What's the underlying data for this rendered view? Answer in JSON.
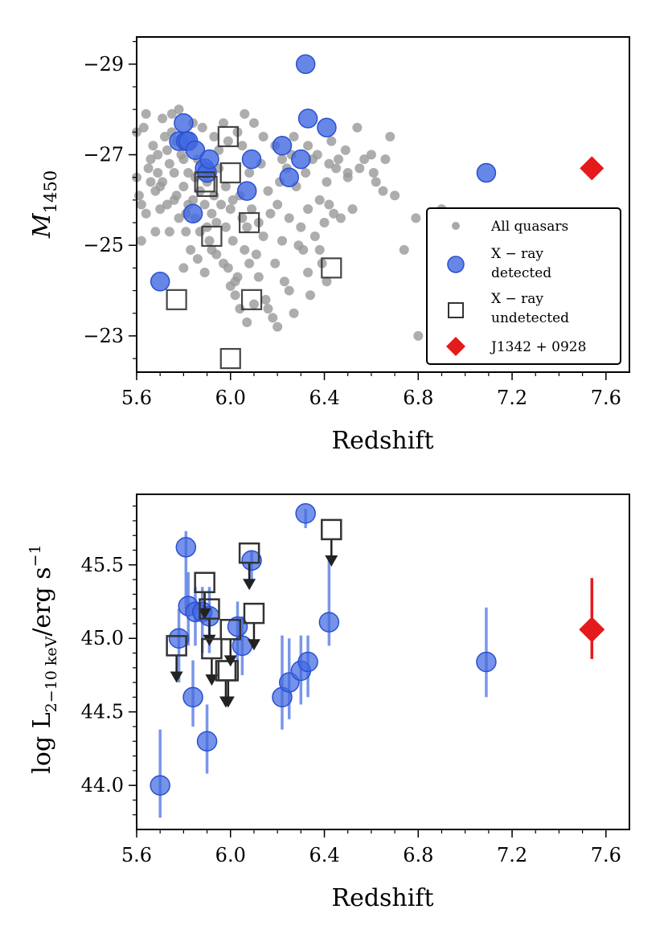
{
  "chart_data": [
    {
      "type": "scatter",
      "xlabel": "Redshift",
      "ylabel": "M",
      "ylabel_sub": "1450",
      "xlim": [
        5.6,
        7.7
      ],
      "ylim": [
        -22.2,
        -29.6
      ],
      "x_ticks": [
        5.6,
        6.0,
        6.4,
        6.8,
        7.2,
        7.6
      ],
      "x_tick_labels": [
        "5.6",
        "6.0",
        "6.4",
        "6.8",
        "7.2",
        "7.6"
      ],
      "y_ticks": [
        -29,
        -27,
        -25,
        -23
      ],
      "y_tick_labels": [
        "−29",
        "−27",
        "−25",
        "−23"
      ],
      "legend": {
        "position": "lower-right",
        "entries": [
          {
            "label": "All quasars",
            "marker": "small-circle",
            "color": "#999999"
          },
          {
            "label_lines": [
              "X − ray",
              "detected"
            ],
            "marker": "circle",
            "color": "#4169E1"
          },
          {
            "label_lines": [
              "X − ray",
              "undetected"
            ],
            "marker": "open-square",
            "color": "#333333"
          },
          {
            "label": "J1342 + 0928",
            "marker": "diamond",
            "color": "#E41A1C"
          }
        ]
      },
      "series": [
        {
          "name": "All quasars",
          "color": "#999999",
          "points": [
            [
              5.6,
              -27.5
            ],
            [
              5.6,
              -26.5
            ],
            [
              5.61,
              -26.1
            ],
            [
              5.62,
              -25.9
            ],
            [
              5.63,
              -27.6
            ],
            [
              5.64,
              -25.7
            ],
            [
              5.65,
              -26.7
            ],
            [
              5.66,
              -26.4
            ],
            [
              5.67,
              -27.2
            ],
            [
              5.68,
              -26.2
            ],
            [
              5.68,
              -25.3
            ],
            [
              5.69,
              -27.0
            ],
            [
              5.7,
              -26.3
            ],
            [
              5.7,
              -25.8
            ],
            [
              5.71,
              -26.4
            ],
            [
              5.72,
              -27.4
            ],
            [
              5.73,
              -27.1
            ],
            [
              5.74,
              -26.8
            ],
            [
              5.74,
              -25.3
            ],
            [
              5.75,
              -27.5
            ],
            [
              5.76,
              -26.6
            ],
            [
              5.77,
              -27.3
            ],
            [
              5.77,
              -26.1
            ],
            [
              5.78,
              -25.6
            ],
            [
              5.79,
              -27.0
            ],
            [
              5.8,
              -26.9
            ],
            [
              5.8,
              -26.3
            ],
            [
              5.8,
              -24.5
            ],
            [
              5.81,
              -25.3
            ],
            [
              5.82,
              -25.9
            ],
            [
              5.82,
              -26.6
            ],
            [
              5.83,
              -27.2
            ],
            [
              5.83,
              -24.9
            ],
            [
              5.84,
              -26.0
            ],
            [
              5.85,
              -25.6
            ],
            [
              5.85,
              -26.5
            ],
            [
              5.86,
              -24.7
            ],
            [
              5.87,
              -25.3
            ],
            [
              5.87,
              -26.2
            ],
            [
              5.88,
              -26.8
            ],
            [
              5.89,
              -25.9
            ],
            [
              5.89,
              -24.4
            ],
            [
              5.9,
              -26.4
            ],
            [
              5.9,
              -25.4
            ],
            [
              5.91,
              -26.6
            ],
            [
              5.92,
              -25.7
            ],
            [
              5.92,
              -24.9
            ],
            [
              5.93,
              -26.1
            ],
            [
              5.94,
              -25.5
            ],
            [
              5.95,
              -26.7
            ],
            [
              5.95,
              -27.1
            ],
            [
              5.96,
              -25.9
            ],
            [
              5.97,
              -24.6
            ],
            [
              5.98,
              -25.4
            ],
            [
              5.98,
              -26.3
            ],
            [
              5.99,
              -27.3
            ],
            [
              6.0,
              -25.8
            ],
            [
              6.0,
              -24.1
            ],
            [
              6.01,
              -26.0
            ],
            [
              6.01,
              -25.1
            ],
            [
              6.02,
              -23.9
            ],
            [
              6.03,
              -24.3
            ],
            [
              6.04,
              -26.1
            ],
            [
              6.05,
              -25.6
            ],
            [
              6.05,
              -27.2
            ],
            [
              6.06,
              -24.9
            ],
            [
              6.07,
              -25.4
            ],
            [
              6.08,
              -26.6
            ],
            [
              6.09,
              -25.8
            ],
            [
              6.1,
              -23.7
            ],
            [
              6.11,
              -24.8
            ],
            [
              6.12,
              -25.5
            ],
            [
              6.13,
              -26.8
            ],
            [
              6.14,
              -25.2
            ],
            [
              6.15,
              -23.8
            ],
            [
              6.16,
              -26.2
            ],
            [
              6.17,
              -25.7
            ],
            [
              6.18,
              -23.4
            ],
            [
              6.19,
              -24.6
            ],
            [
              6.2,
              -25.9
            ],
            [
              6.21,
              -26.4
            ],
            [
              6.22,
              -25.1
            ],
            [
              6.23,
              -24.2
            ],
            [
              6.24,
              -26.7
            ],
            [
              6.25,
              -25.6
            ],
            [
              6.26,
              -27.0
            ],
            [
              6.27,
              -23.5
            ],
            [
              6.28,
              -26.3
            ],
            [
              6.3,
              -25.4
            ],
            [
              6.31,
              -24.9
            ],
            [
              6.32,
              -26.6
            ],
            [
              6.33,
              -25.8
            ],
            [
              6.34,
              -23.9
            ],
            [
              6.35,
              -26.9
            ],
            [
              6.36,
              -25.2
            ],
            [
              6.38,
              -26.0
            ],
            [
              6.39,
              -24.6
            ],
            [
              6.4,
              -25.5
            ],
            [
              6.41,
              -26.4
            ],
            [
              6.42,
              -25.9
            ],
            [
              6.43,
              -27.3
            ],
            [
              6.45,
              -26.7
            ],
            [
              6.47,
              -25.6
            ],
            [
              6.49,
              -27.1
            ],
            [
              6.5,
              -26.5
            ],
            [
              6.52,
              -25.8
            ],
            [
              6.54,
              -27.6
            ],
            [
              6.57,
              -26.9
            ],
            [
              6.6,
              -27.0
            ],
            [
              6.62,
              -26.4
            ],
            [
              6.65,
              -26.2
            ],
            [
              6.68,
              -27.4
            ],
            [
              6.7,
              -26.1
            ],
            [
              6.74,
              -24.9
            ],
            [
              6.79,
              -25.6
            ],
            [
              6.8,
              -23.0
            ],
            [
              6.9,
              -25.8
            ],
            [
              5.62,
              -25.1
            ],
            [
              5.66,
              -26.9
            ],
            [
              5.71,
              -27.8
            ],
            [
              5.75,
              -27.9
            ],
            [
              5.78,
              -28.0
            ],
            [
              5.84,
              -27.7
            ],
            [
              5.88,
              -27.6
            ],
            [
              5.93,
              -27.4
            ],
            [
              5.97,
              -27.7
            ],
            [
              6.03,
              -27.5
            ],
            [
              6.06,
              -27.9
            ],
            [
              6.1,
              -27.7
            ],
            [
              6.14,
              -27.4
            ],
            [
              6.19,
              -27.2
            ],
            [
              6.22,
              -26.9
            ],
            [
              6.27,
              -27.4
            ],
            [
              6.33,
              -27.2
            ],
            [
              6.37,
              -27.0
            ],
            [
              6.42,
              -26.8
            ],
            [
              6.46,
              -26.9
            ],
            [
              6.5,
              -26.6
            ],
            [
              6.55,
              -26.7
            ],
            [
              6.61,
              -26.6
            ],
            [
              6.66,
              -26.9
            ],
            [
              5.64,
              -27.9
            ],
            [
              5.69,
              -26.6
            ],
            [
              5.73,
              -25.9
            ],
            [
              5.76,
              -26.0
            ],
            [
              5.81,
              -25.7
            ],
            [
              5.86,
              -26.9
            ],
            [
              5.91,
              -25.1
            ],
            [
              5.94,
              -24.8
            ],
            [
              5.99,
              -24.5
            ],
            [
              6.02,
              -24.2
            ],
            [
              6.04,
              -23.6
            ],
            [
              6.07,
              -23.3
            ],
            [
              6.08,
              -24.6
            ],
            [
              6.12,
              -24.3
            ],
            [
              6.16,
              -23.6
            ],
            [
              6.2,
              -23.2
            ],
            [
              6.25,
              -24.0
            ],
            [
              6.29,
              -25.0
            ],
            [
              6.33,
              -24.4
            ],
            [
              6.38,
              -24.9
            ],
            [
              6.41,
              -24.2
            ],
            [
              6.44,
              -25.7
            ]
          ]
        },
        {
          "name": "X − ray detected",
          "color": "#4169E1",
          "points": [
            [
              5.7,
              -24.2
            ],
            [
              5.78,
              -27.3
            ],
            [
              5.8,
              -27.7
            ],
            [
              5.81,
              -27.3
            ],
            [
              5.82,
              -27.3
            ],
            [
              5.84,
              -25.7
            ],
            [
              5.85,
              -27.1
            ],
            [
              5.89,
              -26.7
            ],
            [
              5.9,
              -26.6
            ],
            [
              5.91,
              -26.9
            ],
            [
              6.07,
              -26.2
            ],
            [
              6.09,
              -26.9
            ],
            [
              6.22,
              -27.2
            ],
            [
              6.25,
              -26.5
            ],
            [
              6.3,
              -26.9
            ],
            [
              6.32,
              -29.0
            ],
            [
              6.33,
              -27.8
            ],
            [
              6.41,
              -27.6
            ],
            [
              7.09,
              -26.6
            ]
          ]
        },
        {
          "name": "X − ray undetected",
          "color": "#333333",
          "points": [
            [
              5.77,
              -23.8
            ],
            [
              5.89,
              -26.4
            ],
            [
              5.9,
              -26.3
            ],
            [
              5.92,
              -25.2
            ],
            [
              5.99,
              -27.4
            ],
            [
              6.0,
              -26.6
            ],
            [
              6.08,
              -25.5
            ],
            [
              6.09,
              -23.8
            ],
            [
              6.43,
              -24.5
            ],
            [
              6.0,
              -22.5
            ]
          ]
        },
        {
          "name": "J1342 + 0928",
          "color": "#E41A1C",
          "points": [
            [
              7.54,
              -26.7
            ]
          ]
        }
      ]
    },
    {
      "type": "scatter",
      "xlabel": "Redshift",
      "ylabel": "log L",
      "ylabel_sub": "2−10 keV",
      "ylabel_suffix": "/erg s",
      "ylabel_sup": "−1",
      "xlim": [
        5.6,
        7.7
      ],
      "ylim": [
        43.7,
        45.98
      ],
      "x_ticks": [
        5.6,
        6.0,
        6.4,
        6.8,
        7.2,
        7.6
      ],
      "x_tick_labels": [
        "5.6",
        "6.0",
        "6.4",
        "6.8",
        "7.2",
        "7.6"
      ],
      "y_ticks": [
        44.0,
        44.5,
        45.0,
        45.5
      ],
      "y_tick_labels": [
        "44.0",
        "44.5",
        "45.0",
        "45.5"
      ],
      "series": [
        {
          "name": "X − ray detected",
          "color": "#4169E1",
          "points": [
            {
              "x": 5.7,
              "y": 44.0,
              "lo": 43.78,
              "hi": 44.38
            },
            {
              "x": 5.78,
              "y": 45.0,
              "lo": 44.7,
              "hi": 45.2
            },
            {
              "x": 5.81,
              "y": 45.62,
              "lo": 45.2,
              "hi": 45.73
            },
            {
              "x": 5.82,
              "y": 45.22,
              "lo": 44.95,
              "hi": 45.45
            },
            {
              "x": 5.84,
              "y": 44.6,
              "lo": 44.4,
              "hi": 44.85
            },
            {
              "x": 5.85,
              "y": 45.18,
              "lo": 44.95,
              "hi": 45.35
            },
            {
              "x": 5.88,
              "y": 45.18,
              "lo": 44.9,
              "hi": 45.35
            },
            {
              "x": 5.9,
              "y": 44.3,
              "lo": 44.08,
              "hi": 44.55
            },
            {
              "x": 5.91,
              "y": 45.15,
              "lo": 44.9,
              "hi": 45.35
            },
            {
              "x": 6.03,
              "y": 45.08,
              "lo": 44.85,
              "hi": 45.25
            },
            {
              "x": 6.05,
              "y": 44.95,
              "lo": 44.75,
              "hi": 45.15
            },
            {
              "x": 6.09,
              "y": 45.53,
              "lo": 45.4,
              "hi": 45.6
            },
            {
              "x": 6.22,
              "y": 44.6,
              "lo": 44.38,
              "hi": 45.02
            },
            {
              "x": 6.25,
              "y": 44.7,
              "lo": 44.45,
              "hi": 45.0
            },
            {
              "x": 6.3,
              "y": 44.78,
              "lo": 44.55,
              "hi": 45.02
            },
            {
              "x": 6.32,
              "y": 45.85,
              "lo": 45.75,
              "hi": 45.88
            },
            {
              "x": 6.33,
              "y": 44.84,
              "lo": 44.6,
              "hi": 45.02
            },
            {
              "x": 6.42,
              "y": 45.11,
              "lo": 44.95,
              "hi": 45.55
            },
            {
              "x": 7.09,
              "y": 44.84,
              "lo": 44.6,
              "hi": 45.21
            }
          ]
        },
        {
          "name": "X − ray undetected",
          "color": "#333333",
          "points": [
            {
              "x": 5.77,
              "y": 44.95,
              "arrow_to": 44.72
            },
            {
              "x": 5.89,
              "y": 45.38,
              "arrow_to": 45.15
            },
            {
              "x": 5.91,
              "y": 45.2,
              "arrow_to": 44.97
            },
            {
              "x": 5.92,
              "y": 44.93,
              "arrow_to": 44.7
            },
            {
              "x": 5.98,
              "y": 44.78,
              "arrow_to": 44.55
            },
            {
              "x": 5.99,
              "y": 44.78,
              "arrow_to": 44.55
            },
            {
              "x": 6.0,
              "y": 45.06,
              "arrow_to": 44.83
            },
            {
              "x": 6.08,
              "y": 45.58,
              "arrow_to": 45.35
            },
            {
              "x": 6.1,
              "y": 45.17,
              "arrow_to": 44.94
            },
            {
              "x": 6.43,
              "y": 45.74,
              "arrow_to": 45.51
            }
          ]
        },
        {
          "name": "J1342 + 0928",
          "color": "#E41A1C",
          "points": [
            {
              "x": 7.54,
              "y": 45.06,
              "lo": 44.86,
              "hi": 45.41
            }
          ]
        }
      ]
    }
  ]
}
